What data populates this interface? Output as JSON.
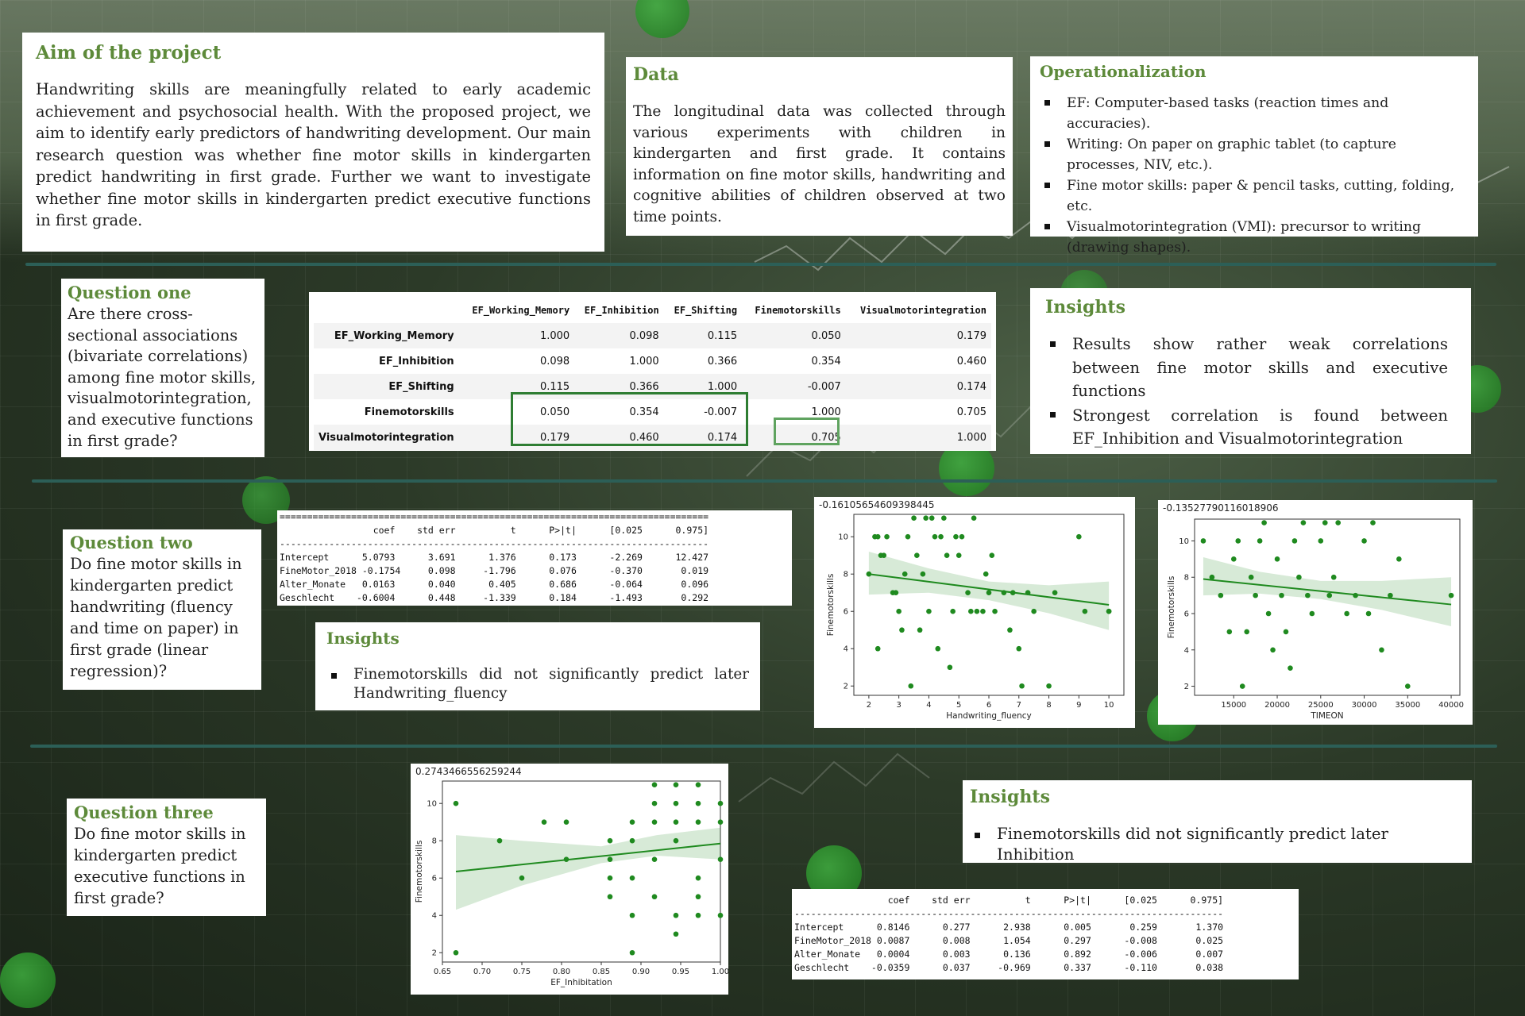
{
  "aim": {
    "title": "Aim of the project",
    "text": "Handwriting skills are meaningfully related to early academic achievement and psychosocial health. With the proposed project, we aim to identify early predictors of handwriting development. Our main research question was whether fine motor skills in kindergarten predict handwriting in first grade. Further we want to investigate whether fine motor skills in kindergarten predict executive functions in first grade."
  },
  "data_box": {
    "title": "Data",
    "text": "The longitudinal data was collected through various experiments with children in kindergarten and first grade. It contains information on fine motor skills, handwriting and cognitive abilities of children observed at two time points."
  },
  "operationalization": {
    "title": "Operationalization",
    "items": [
      "EF: Computer-based tasks (reaction times and accuracies).",
      "Writing: On paper on graphic tablet (to capture processes, NIV, etc.).",
      "Fine motor skills: paper & pencil tasks, cutting, folding, etc.",
      "Visualmotorintegration (VMI): precursor to writing (drawing shapes)."
    ]
  },
  "q1": {
    "title": "Question one",
    "text": "Are there cross-sectional associations (bivariate correlations) among fine motor skills, visualmotorintegration, and executive functions in first grade?",
    "table": {
      "columns": [
        "",
        "EF_Working_Memory",
        "EF_Inhibition",
        "EF_Shifting",
        "Finemotorskills",
        "Visualmotorintegration"
      ],
      "rows": [
        [
          "EF_Working_Memory",
          "1.000",
          "0.098",
          "0.115",
          "0.050",
          "0.179"
        ],
        [
          "EF_Inhibition",
          "0.098",
          "1.000",
          "0.366",
          "0.354",
          "0.460"
        ],
        [
          "EF_Shifting",
          "0.115",
          "0.366",
          "1.000",
          "-0.007",
          "0.174"
        ],
        [
          "Finemotorskills",
          "0.050",
          "0.354",
          "-0.007",
          "1.000",
          "0.705"
        ],
        [
          "Visualmotorintegration",
          "0.179",
          "0.460",
          "0.174",
          "0.705",
          "1.000"
        ]
      ]
    },
    "insights_title": "Insights",
    "insights": [
      "Results show rather weak correlations between fine motor skills and executive functions",
      "Strongest correlation is found between EF_Inhibition and Visualmotorintegration"
    ]
  },
  "q2": {
    "title": "Question two",
    "text": "Do fine motor skills in kindergarten predict handwriting (fluency and time on paper) in first grade (linear regression)?",
    "regression": "==============================================================================\n                 coef    std err          t      P>|t|      [0.025      0.975]\n------------------------------------------------------------------------------\nIntercept      5.0793      3.691      1.376      0.173      -2.269      12.427\nFineMotor_2018 -0.1754     0.098     -1.796      0.076      -0.370       0.019\nAlter_Monate   0.0163      0.040      0.405      0.686      -0.064       0.096\nGeschlecht    -0.6004      0.448     -1.339      0.184      -1.493       0.292",
    "insights_title": "Insights",
    "insights": [
      "Finemotorskills did not significantly predict later Handwriting_fluency"
    ]
  },
  "q3": {
    "title": "Question three",
    "text": "Do fine motor skills in kindergarten predict executive functions in first grade?",
    "regression": "                 coef    std err          t      P>|t|      [0.025      0.975]\n------------------------------------------------------------------------------\nIntercept      0.8146      0.277      2.938      0.005       0.259       1.370\nFineMotor_2018 0.0087      0.008      1.054      0.297      -0.008       0.025\nAlter_Monate   0.0004      0.003      0.136      0.892      -0.006       0.007\nGeschlecht    -0.0359      0.037     -0.969      0.337      -0.110       0.038",
    "insights_title": "Insights",
    "insights": [
      "Finemotorskills did not significantly predict later Inhibition"
    ]
  },
  "chart_data": [
    {
      "type": "scatter",
      "title": "-0.16105654609398445",
      "xlabel": "Handwriting_fluency",
      "ylabel": "Finemotorskills",
      "xlim": [
        1.5,
        10.5
      ],
      "ylim": [
        1.5,
        11.2
      ],
      "xticks": [
        2,
        3,
        4,
        5,
        6,
        7,
        8,
        9,
        10
      ],
      "yticks": [
        2,
        4,
        6,
        8,
        10
      ],
      "x": [
        2.0,
        2.2,
        2.3,
        2.5,
        2.6,
        2.4,
        2.3,
        2.8,
        2.9,
        3.0,
        3.1,
        3.2,
        3.3,
        3.4,
        3.5,
        3.6,
        3.7,
        3.8,
        3.9,
        4.0,
        4.1,
        4.2,
        4.3,
        4.4,
        4.5,
        4.6,
        4.7,
        4.8,
        4.9,
        5.0,
        5.1,
        5.3,
        5.4,
        5.5,
        5.6,
        5.8,
        5.9,
        6.0,
        6.1,
        6.2,
        6.5,
        6.7,
        6.8,
        7.0,
        7.1,
        7.3,
        7.5,
        8.0,
        8.2,
        9.0,
        9.2,
        10.0,
        10.0
      ],
      "y": [
        8,
        10,
        10,
        9,
        10,
        9,
        4,
        7,
        7,
        6,
        5,
        8,
        10,
        2,
        11,
        9,
        5,
        8,
        11,
        6,
        11,
        10,
        4,
        10,
        11,
        9,
        3,
        6,
        10,
        9,
        10,
        7,
        6,
        11,
        6,
        6,
        8,
        7,
        9,
        6,
        7,
        5,
        7,
        4,
        2,
        7,
        6,
        2,
        7,
        10,
        6,
        6,
        6
      ],
      "trend": {
        "x": [
          2,
          10
        ],
        "y": [
          8.0,
          6.35
        ]
      },
      "ci_band": {
        "x": [
          2,
          4,
          6,
          8,
          10
        ],
        "lower": [
          6.9,
          7.0,
          6.6,
          5.9,
          5.0
        ],
        "upper": [
          9.2,
          8.3,
          7.6,
          7.4,
          7.6
        ]
      }
    },
    {
      "type": "scatter",
      "title": "-0.13527790116018906",
      "xlabel": "TIMEON",
      "ylabel": "Finemotorskills",
      "xlim": [
        10500,
        41000
      ],
      "ylim": [
        1.5,
        11.2
      ],
      "xticks": [
        15000,
        20000,
        25000,
        30000,
        35000,
        40000
      ],
      "yticks": [
        2,
        4,
        6,
        8,
        10
      ],
      "x": [
        11500,
        12500,
        13500,
        14500,
        15000,
        15500,
        16000,
        16500,
        17000,
        17500,
        18000,
        18500,
        19000,
        19500,
        20000,
        20500,
        21000,
        21500,
        22000,
        22500,
        23000,
        23500,
        24000,
        25000,
        25500,
        26000,
        26500,
        27000,
        28000,
        29000,
        30000,
        30500,
        31000,
        32000,
        33000,
        34000,
        35000,
        40000
      ],
      "y": [
        10,
        8,
        7,
        5,
        9,
        10,
        2,
        5,
        8,
        7,
        10,
        11,
        6,
        4,
        9,
        7,
        5,
        3,
        10,
        8,
        11,
        7,
        6,
        10,
        11,
        7,
        8,
        11,
        6,
        7,
        10,
        6,
        11,
        4,
        7,
        9,
        2,
        7
      ],
      "trend": {
        "x": [
          11500,
          40000
        ],
        "y": [
          7.9,
          6.5
        ]
      },
      "ci_band": {
        "x": [
          11500,
          18000,
          25000,
          32000,
          40000
        ],
        "lower": [
          7.0,
          7.1,
          6.8,
          6.2,
          5.3
        ],
        "upper": [
          9.1,
          8.3,
          7.8,
          7.8,
          8.0
        ]
      }
    },
    {
      "type": "scatter",
      "title": "0.2743466556259244",
      "xlabel": "EF_Inhibitation",
      "ylabel": "Finemotorskills",
      "xlim": [
        0.65,
        1.0
      ],
      "ylim": [
        1.5,
        11.2
      ],
      "xticks": [
        0.65,
        0.7,
        0.75,
        0.8,
        0.85,
        0.9,
        0.95,
        1.0
      ],
      "yticks": [
        2,
        4,
        6,
        8,
        10
      ],
      "x": [
        0.667,
        0.667,
        0.722,
        0.75,
        0.778,
        0.806,
        0.806,
        0.861,
        0.861,
        0.861,
        0.861,
        0.889,
        0.889,
        0.889,
        0.889,
        0.889,
        0.917,
        0.917,
        0.917,
        0.917,
        0.917,
        0.944,
        0.944,
        0.944,
        0.944,
        0.944,
        0.944,
        0.972,
        0.972,
        0.972,
        0.972,
        0.972,
        0.972,
        1.0,
        1.0,
        1.0,
        1.0
      ],
      "y": [
        10,
        2,
        8,
        6,
        9,
        9,
        7,
        8,
        7,
        6,
        5,
        9,
        8,
        6,
        4,
        2,
        11,
        10,
        9,
        7,
        5,
        11,
        10,
        9,
        8,
        4,
        3,
        11,
        10,
        9,
        6,
        5,
        4,
        10,
        9,
        7,
        4
      ],
      "trend": {
        "x": [
          0.667,
          1.0
        ],
        "y": [
          6.35,
          7.85
        ]
      },
      "ci_band": {
        "x": [
          0.667,
          0.75,
          0.85,
          0.92,
          1.0
        ],
        "lower": [
          4.3,
          5.6,
          6.8,
          7.2,
          7.0
        ],
        "upper": [
          8.3,
          8.0,
          7.7,
          8.3,
          8.7
        ]
      }
    }
  ],
  "colors": {
    "accent_green": "#5d8a3a",
    "plot_green": "#1f8a1f",
    "highlight_dark": "#2e7d32",
    "highlight_light": "#5fa35f",
    "divider": "#2c5f57"
  }
}
